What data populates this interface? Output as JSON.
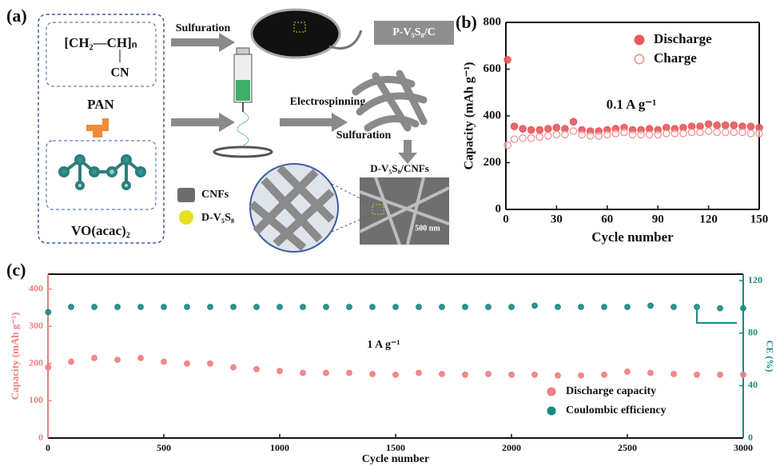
{
  "panel_a": {
    "label": "(a)",
    "formula": "[CH₂—CH]ₙ",
    "formula_group": "CN",
    "polymer": "PAN",
    "precursor": "VO(acac)₂",
    "step1": "Sulfuration",
    "product1": "P-V₅S₈/C",
    "step2": "Electrospinning",
    "step3": "Sulfuration",
    "product2": "D-V₅S₈/CNFs",
    "legend": [
      "CNFs",
      "D-V₅S₈"
    ],
    "scale_bar": "500 nm"
  },
  "chart_data": [
    {
      "type": "scatter",
      "panel_label": "(b)",
      "x_label": "Cycle number",
      "y_label": "Capacity (mAh g⁻¹)",
      "annotation": "0.1 A g⁻¹",
      "x": [
        1,
        5,
        10,
        15,
        20,
        25,
        30,
        35,
        40,
        45,
        50,
        55,
        60,
        65,
        70,
        75,
        80,
        85,
        90,
        95,
        100,
        105,
        110,
        115,
        120,
        125,
        130,
        135,
        140,
        145,
        150
      ],
      "series": [
        {
          "name": "Discharge",
          "color": "#e8585c",
          "marker": "filled",
          "values": [
            640,
            355,
            345,
            340,
            340,
            345,
            350,
            345,
            375,
            340,
            335,
            335,
            340,
            345,
            350,
            340,
            340,
            345,
            340,
            350,
            345,
            350,
            355,
            355,
            365,
            360,
            360,
            360,
            355,
            355,
            350
          ]
        },
        {
          "name": "Charge",
          "color": "#f08a8c",
          "marker": "open",
          "values": [
            275,
            300,
            305,
            305,
            310,
            315,
            320,
            320,
            335,
            320,
            315,
            315,
            320,
            325,
            330,
            320,
            320,
            320,
            320,
            325,
            325,
            325,
            330,
            330,
            335,
            330,
            330,
            330,
            330,
            325,
            325
          ]
        }
      ],
      "xlim": [
        0,
        150
      ],
      "xticks": [
        0,
        30,
        60,
        90,
        120,
        150
      ],
      "ylim": [
        0,
        800
      ],
      "yticks": [
        0,
        200,
        400,
        600,
        800
      ],
      "legend": "upper right"
    },
    {
      "type": "scatter",
      "panel_label": "(c)",
      "x_label": "Cycle number",
      "y_label": "Capacity (mAh g⁻¹)",
      "y2_label": "CE (%)",
      "annotation": "1 A g⁻¹",
      "x": [
        1,
        100,
        200,
        300,
        400,
        500,
        600,
        700,
        800,
        900,
        1000,
        1100,
        1200,
        1300,
        1400,
        1500,
        1600,
        1700,
        1800,
        1900,
        2000,
        2100,
        2200,
        2300,
        2400,
        2500,
        2600,
        2700,
        2800,
        2900,
        3000
      ],
      "series": [
        {
          "name": "Discharge capacity",
          "color": "#ef7f80",
          "marker": "filled",
          "values": [
            190,
            205,
            215,
            210,
            215,
            205,
            200,
            200,
            190,
            185,
            180,
            175,
            175,
            175,
            172,
            170,
            175,
            172,
            170,
            172,
            170,
            170,
            168,
            168,
            170,
            178,
            175,
            172,
            170,
            170,
            170
          ]
        },
        {
          "name": "Coulombic efficiency",
          "color": "#1a8a84",
          "marker": "filled",
          "axis": "y2",
          "values": [
            96,
            100,
            100,
            100,
            100,
            100,
            100,
            100,
            100,
            100,
            100,
            100,
            100,
            100,
            100,
            100,
            100,
            100,
            100,
            100,
            100,
            101,
            100,
            100,
            100,
            100,
            101,
            100,
            100,
            99,
            99
          ]
        }
      ],
      "xlim": [
        0,
        3000
      ],
      "xticks": [
        0,
        500,
        1000,
        1500,
        2000,
        2500,
        3000
      ],
      "ylim": [
        0,
        440
      ],
      "yticks": [
        0,
        100,
        200,
        300,
        400
      ],
      "y2lim": [
        0,
        125
      ],
      "y2ticks": [
        0,
        40,
        80,
        120
      ],
      "legend": "lower right"
    }
  ]
}
